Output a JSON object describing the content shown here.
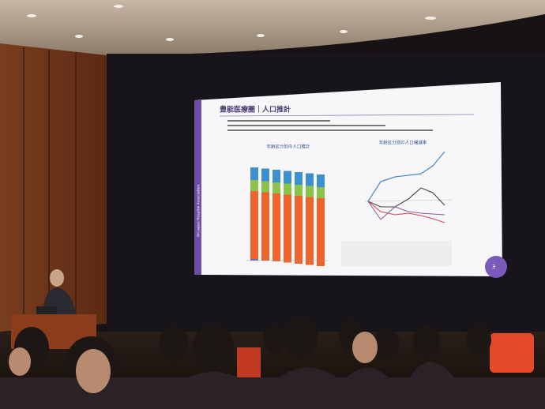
{
  "slide": {
    "title": "豊能医療圏｜人口推計",
    "left_chart_title": "年齢区分別の人口推計",
    "right_chart_title": "年齢区分別の人口増減率",
    "page_number": "3",
    "side_label": "All Japan Hospital Association"
  }
}
